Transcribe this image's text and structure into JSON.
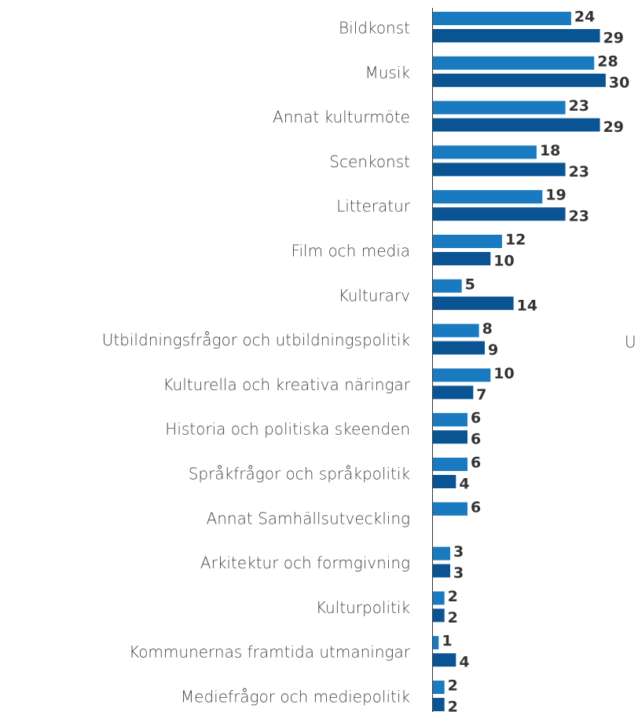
{
  "chart_data": {
    "type": "bar",
    "orientation": "horizontal",
    "categories": [
      "Bildkonst",
      "Musik",
      "Annat kulturmöte",
      "Scenkonst",
      "Litteratur",
      "Film och media",
      "Kulturarv",
      "Utbildningsfrågor och utbildningspolitik",
      "Kulturella och kreativa näringar",
      "Historia och politiska skeenden",
      "Språkfrågor och språkpolitik",
      "Annat Samhällsutveckling",
      "Arkitektur och formgivning",
      "Kulturpolitik",
      "Kommunernas framtida utmaningar",
      "Mediefrågor och mediepolitik"
    ],
    "series": [
      {
        "color": "#1a7abf",
        "values": [
          24,
          28,
          23,
          18,
          19,
          12,
          5,
          8,
          10,
          6,
          6,
          6,
          3,
          2,
          1,
          2
        ]
      },
      {
        "color": "#0a5494",
        "values": [
          29,
          30,
          29,
          23,
          23,
          10,
          14,
          9,
          7,
          6,
          4,
          null,
          3,
          2,
          4,
          2
        ]
      }
    ],
    "annotation": "U"
  }
}
